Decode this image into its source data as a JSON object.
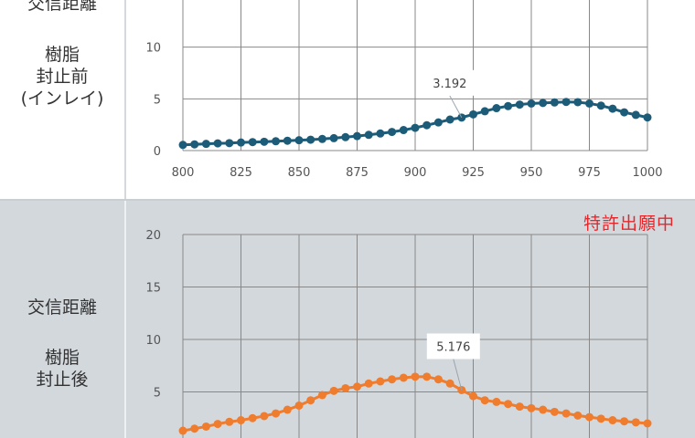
{
  "top_panel": {
    "label_lines": [
      "交信距離",
      "樹脂",
      "封止前",
      "(インレイ)"
    ]
  },
  "bottom_panel": {
    "label_lines": [
      "交信距離",
      "樹脂",
      "封止後"
    ],
    "badge": "特許出願中"
  },
  "colors": {
    "top_series": "#1d5c78",
    "bottom_series": "#f07c2e",
    "badge": "#e8262a",
    "grid": "#888888"
  },
  "chart_data": [
    {
      "type": "line",
      "x": [
        800,
        805,
        810,
        815,
        820,
        825,
        830,
        835,
        840,
        845,
        850,
        855,
        860,
        865,
        870,
        875,
        880,
        885,
        890,
        895,
        900,
        905,
        910,
        915,
        920,
        925,
        930,
        935,
        940,
        945,
        950,
        955,
        960,
        965,
        970,
        975,
        980,
        985,
        990,
        995,
        1000
      ],
      "series": [
        {
          "values": [
            0.55,
            0.6,
            0.65,
            0.7,
            0.72,
            0.78,
            0.82,
            0.85,
            0.9,
            0.95,
            1.0,
            1.05,
            1.12,
            1.2,
            1.3,
            1.4,
            1.52,
            1.65,
            1.8,
            1.98,
            2.2,
            2.45,
            2.72,
            3.0,
            3.192,
            3.5,
            3.8,
            4.1,
            4.3,
            4.45,
            4.55,
            4.6,
            4.65,
            4.7,
            4.68,
            4.55,
            4.35,
            4.05,
            3.7,
            3.45,
            3.2
          ]
        }
      ],
      "xticks": [
        "800",
        "825",
        "850",
        "875",
        "900",
        "925",
        "950",
        "975",
        "1000"
      ],
      "yticks": [
        "0",
        "5",
        "10"
      ],
      "ylim": [
        0,
        15
      ],
      "xlim": [
        800,
        1000
      ],
      "annotation": {
        "text": "3.192",
        "x": 920,
        "y": 3.192
      },
      "grid": true
    },
    {
      "type": "line",
      "x": [
        800,
        805,
        810,
        815,
        820,
        825,
        830,
        835,
        840,
        845,
        850,
        855,
        860,
        865,
        870,
        875,
        880,
        885,
        890,
        895,
        900,
        905,
        910,
        915,
        920,
        925,
        930,
        935,
        940,
        945,
        950,
        955,
        960,
        965,
        970,
        975,
        980,
        985,
        990,
        995,
        1000
      ],
      "series": [
        {
          "values": [
            1.3,
            1.5,
            1.7,
            1.95,
            2.15,
            2.3,
            2.5,
            2.7,
            2.95,
            3.3,
            3.7,
            4.2,
            4.7,
            5.1,
            5.35,
            5.5,
            5.8,
            6.0,
            6.2,
            6.35,
            6.45,
            6.45,
            6.2,
            5.8,
            5.176,
            4.6,
            4.2,
            4.05,
            3.85,
            3.6,
            3.45,
            3.3,
            3.1,
            2.95,
            2.75,
            2.6,
            2.45,
            2.3,
            2.2,
            2.1,
            2.0
          ]
        }
      ],
      "yticks": [
        "5",
        "10",
        "15",
        "20"
      ],
      "ylim": [
        0,
        20
      ],
      "xlim": [
        800,
        1000
      ],
      "annotation": {
        "text": "5.176",
        "x": 920,
        "y": 5.176
      },
      "grid": true
    }
  ]
}
